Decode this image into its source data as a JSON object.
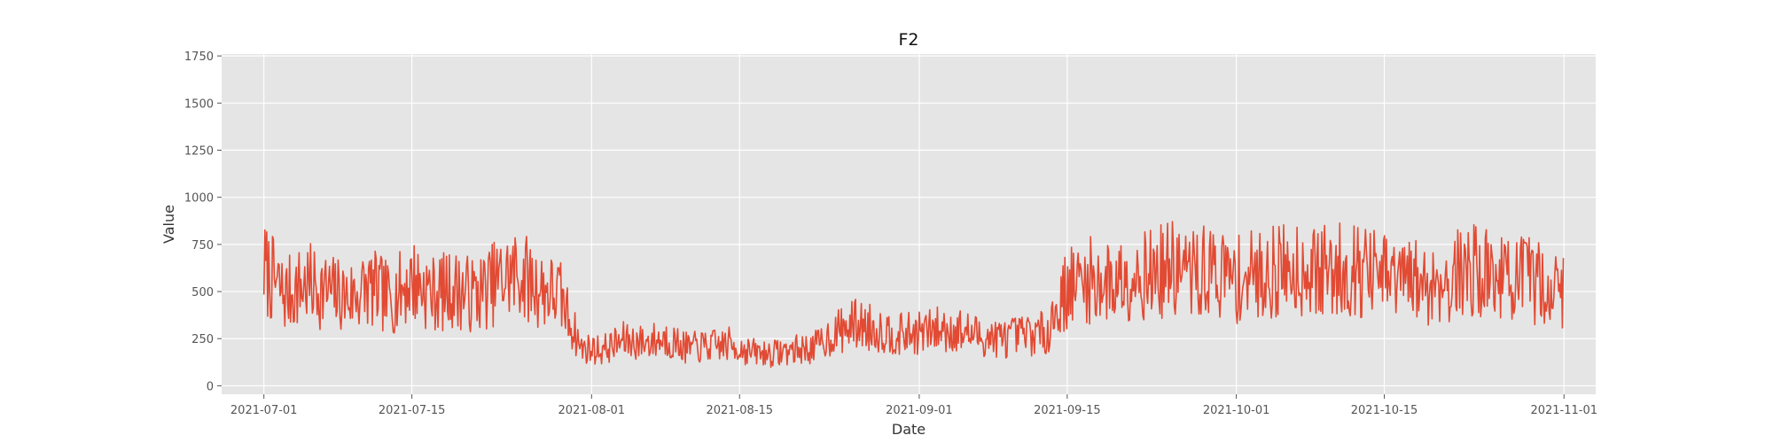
{
  "chart_data": {
    "type": "line",
    "title": "F2",
    "xlabel": "Date",
    "ylabel": "Value",
    "xlim": [
      "2021-06-27",
      "2021-11-04"
    ],
    "ylim": [
      -45,
      1760
    ],
    "x_ticks": [
      "2021-07-01",
      "2021-07-15",
      "2021-08-01",
      "2021-08-15",
      "2021-09-01",
      "2021-09-15",
      "2021-10-01",
      "2021-10-15",
      "2021-11-01"
    ],
    "y_ticks": [
      0,
      250,
      500,
      750,
      1000,
      1250,
      1500,
      1750
    ],
    "grid": true,
    "style": "ggplot",
    "colors": {
      "background": "#e5e5e5",
      "grid": "#ffffff",
      "line": "#e24a33"
    },
    "series": [
      {
        "x": [
          "2021-07-01",
          "2021-07-03",
          "2021-07-05",
          "2021-07-07",
          "2021-07-09",
          "2021-07-11",
          "2021-07-13",
          "2021-07-15",
          "2021-07-17",
          "2021-07-19",
          "2021-07-21",
          "2021-07-23",
          "2021-07-25",
          "2021-07-27",
          "2021-07-29",
          "2021-07-31",
          "2021-08-02",
          "2021-08-04",
          "2021-08-06",
          "2021-08-08",
          "2021-08-10",
          "2021-08-12",
          "2021-08-14",
          "2021-08-16",
          "2021-08-18",
          "2021-08-20",
          "2021-08-22",
          "2021-08-24",
          "2021-08-26",
          "2021-08-28",
          "2021-08-30",
          "2021-09-01",
          "2021-09-03",
          "2021-09-05",
          "2021-09-07",
          "2021-09-09",
          "2021-09-11",
          "2021-09-13",
          "2021-09-15",
          "2021-09-17",
          "2021-09-19",
          "2021-09-21",
          "2021-09-23",
          "2021-09-25",
          "2021-09-27",
          "2021-09-29",
          "2021-10-01",
          "2021-10-03",
          "2021-10-05",
          "2021-10-07",
          "2021-10-09",
          "2021-10-11",
          "2021-10-13",
          "2021-10-15",
          "2021-10-17",
          "2021-10-19",
          "2021-10-21",
          "2021-10-23",
          "2021-10-25",
          "2021-10-27",
          "2021-10-29",
          "2021-11-01"
        ],
        "values": [
          620,
          480,
          540,
          500,
          470,
          520,
          460,
          560,
          490,
          510,
          480,
          550,
          600,
          520,
          480,
          200,
          190,
          240,
          230,
          250,
          200,
          210,
          220,
          180,
          170,
          190,
          200,
          280,
          330,
          300,
          270,
          280,
          300,
          290,
          260,
          250,
          270,
          280,
          520,
          560,
          540,
          600,
          590,
          620,
          590,
          610,
          560,
          590,
          610,
          630,
          600,
          620,
          610,
          570,
          560,
          540,
          560,
          620,
          590,
          570,
          560,
          500
        ]
      }
    ]
  }
}
